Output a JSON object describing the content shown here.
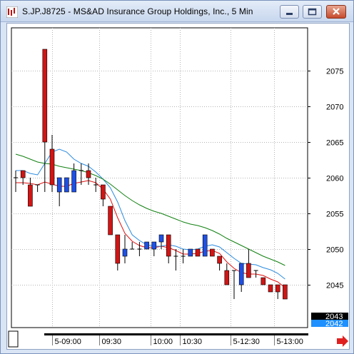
{
  "window": {
    "title": "S.JP.J8725 - MS&AD Insurance Group Holdings, Inc., 5 Min"
  },
  "icons": {
    "app": "chart-app-icon",
    "minimize": "minimize-icon",
    "maximize": "maximize-icon",
    "close": "close-icon",
    "scroll_right": "right-arrow-icon"
  },
  "colors": {
    "up_candle": "#1e50e6",
    "down_candle": "#d21414",
    "ma_fast": "#e01010",
    "ma_mid": "#2a8be0",
    "ma_slow": "#118011",
    "price_tag_last": "#000000",
    "price_tag_bid": "#1e90ff"
  },
  "price_tags": {
    "last": "2043",
    "bid": "2042"
  },
  "chart_data": {
    "type": "candlestick",
    "title": "S.JP.J8725 - MS&AD Insurance Group Holdings, Inc., 5 Min",
    "ylim": [
      2039,
      2081
    ],
    "yticks": [
      "2045",
      "2050",
      "2055",
      "2060",
      "2065",
      "2070",
      "2075"
    ],
    "ytick_values": [
      2045,
      2050,
      2055,
      2060,
      2065,
      2070,
      2075
    ],
    "xticks": [
      "5-09:00",
      "09:30",
      "10:00",
      "10:30",
      "5-12:30",
      "5-13:00"
    ],
    "xtick_candle_index": [
      5.5,
      12,
      19,
      23,
      30,
      36
    ],
    "grid": true,
    "candles": [
      {
        "o": 2060,
        "h": 2061,
        "l": 2058,
        "c": 2060
      },
      {
        "o": 2061,
        "h": 2061,
        "l": 2059,
        "c": 2060
      },
      {
        "o": 2059,
        "h": 2060,
        "l": 2056,
        "c": 2056
      },
      {
        "o": 2059,
        "h": 2059,
        "l": 2058,
        "c": 2059
      },
      {
        "o": 2078,
        "h": 2078,
        "l": 2058,
        "c": 2065
      },
      {
        "o": 2064,
        "h": 2066,
        "l": 2058,
        "c": 2059
      },
      {
        "o": 2058,
        "h": 2060,
        "l": 2056,
        "c": 2060
      },
      {
        "o": 2058,
        "h": 2060,
        "l": 2058,
        "c": 2060
      },
      {
        "o": 2058,
        "h": 2062,
        "l": 2058,
        "c": 2061
      },
      {
        "o": 2061,
        "h": 2062,
        "l": 2059,
        "c": 2061
      },
      {
        "o": 2061,
        "h": 2062,
        "l": 2059,
        "c": 2060
      },
      {
        "o": 2059,
        "h": 2060,
        "l": 2058,
        "c": 2059
      },
      {
        "o": 2059,
        "h": 2059,
        "l": 2056,
        "c": 2057
      },
      {
        "o": 2056,
        "h": 2056,
        "l": 2052,
        "c": 2052
      },
      {
        "o": 2052,
        "h": 2052,
        "l": 2047,
        "c": 2048
      },
      {
        "o": 2049,
        "h": 2052,
        "l": 2048,
        "c": 2050
      },
      {
        "o": 2050,
        "h": 2051,
        "l": 2050,
        "c": 2050
      },
      {
        "o": 2050,
        "h": 2051,
        "l": 2049,
        "c": 2050
      },
      {
        "o": 2050,
        "h": 2051,
        "l": 2050,
        "c": 2051
      },
      {
        "o": 2050,
        "h": 2051,
        "l": 2049,
        "c": 2051
      },
      {
        "o": 2051,
        "h": 2052,
        "l": 2050,
        "c": 2052
      },
      {
        "o": 2052,
        "h": 2052,
        "l": 2048,
        "c": 2049
      },
      {
        "o": 2049,
        "h": 2050,
        "l": 2047,
        "c": 2049
      },
      {
        "o": 2049,
        "h": 2050,
        "l": 2048,
        "c": 2049
      },
      {
        "o": 2049,
        "h": 2050,
        "l": 2049,
        "c": 2050
      },
      {
        "o": 2050,
        "h": 2050,
        "l": 2049,
        "c": 2049
      },
      {
        "o": 2049,
        "h": 2052,
        "l": 2049,
        "c": 2052
      },
      {
        "o": 2050,
        "h": 2050,
        "l": 2049,
        "c": 2049
      },
      {
        "o": 2049,
        "h": 2049,
        "l": 2047,
        "c": 2048
      },
      {
        "o": 2047,
        "h": 2048,
        "l": 2045,
        "c": 2045
      },
      {
        "o": 2047,
        "h": 2047,
        "l": 2043,
        "c": 2047
      },
      {
        "o": 2045,
        "h": 2048,
        "l": 2044,
        "c": 2048
      },
      {
        "o": 2048,
        "h": 2050,
        "l": 2046,
        "c": 2046
      },
      {
        "o": 2047,
        "h": 2047,
        "l": 2046,
        "c": 2047
      },
      {
        "o": 2046,
        "h": 2046,
        "l": 2045,
        "c": 2045
      },
      {
        "o": 2045,
        "h": 2045,
        "l": 2044,
        "c": 2044
      },
      {
        "o": 2045,
        "h": 2045,
        "l": 2043,
        "c": 2044
      },
      {
        "o": 2045,
        "h": 2045,
        "l": 2043,
        "c": 2043
      }
    ],
    "series": [
      {
        "values": [
          2059.3,
          2059.3,
          2059.2,
          2059.0,
          2059.4,
          2059.1,
          2058.8,
          2058.8,
          2059.2,
          2059.4,
          2059.6,
          2059.3,
          2058.4,
          2057.0,
          2054.4,
          2052.2,
          2051.1,
          2050.5,
          2050.2,
          2050.2,
          2050.4,
          2050.2,
          2049.8,
          2049.3,
          2049.3,
          2049.4,
          2049.7,
          2049.8,
          2049.4,
          2048.2,
          2047.3,
          2046.7,
          2046.5,
          2046.5,
          2046.3,
          2045.8,
          2045.4,
          2044.6
        ]
      },
      {
        "values": [
          2061.0,
          2061.0,
          2060.6,
          2060.4,
          2062.0,
          2063.6,
          2064.0,
          2063.6,
          2062.6,
          2062.0,
          2061.6,
          2060.8,
          2059.8,
          2058.6,
          2056.6,
          2054.0,
          2052.0,
          2051.2,
          2050.6,
          2050.4,
          2050.4,
          2050.6,
          2050.4,
          2050.0,
          2049.9,
          2050.0,
          2050.4,
          2050.6,
          2050.3,
          2049.5,
          2048.7,
          2048.0,
          2047.9,
          2047.8,
          2047.4,
          2047.1,
          2046.6,
          2045.8
        ]
      },
      {
        "values": [
          2063.3,
          2063.0,
          2062.6,
          2062.2,
          2062.0,
          2061.9,
          2061.6,
          2061.4,
          2061.2,
          2061.0,
          2060.7,
          2060.3,
          2059.8,
          2059.1,
          2058.3,
          2057.5,
          2056.8,
          2056.2,
          2055.7,
          2055.3,
          2055.0,
          2054.6,
          2054.2,
          2053.8,
          2053.5,
          2053.3,
          2053.0,
          2052.6,
          2052.1,
          2051.5,
          2051.0,
          2050.5,
          2050.0,
          2049.5,
          2049.0,
          2048.6,
          2048.2,
          2047.7
        ]
      }
    ]
  }
}
